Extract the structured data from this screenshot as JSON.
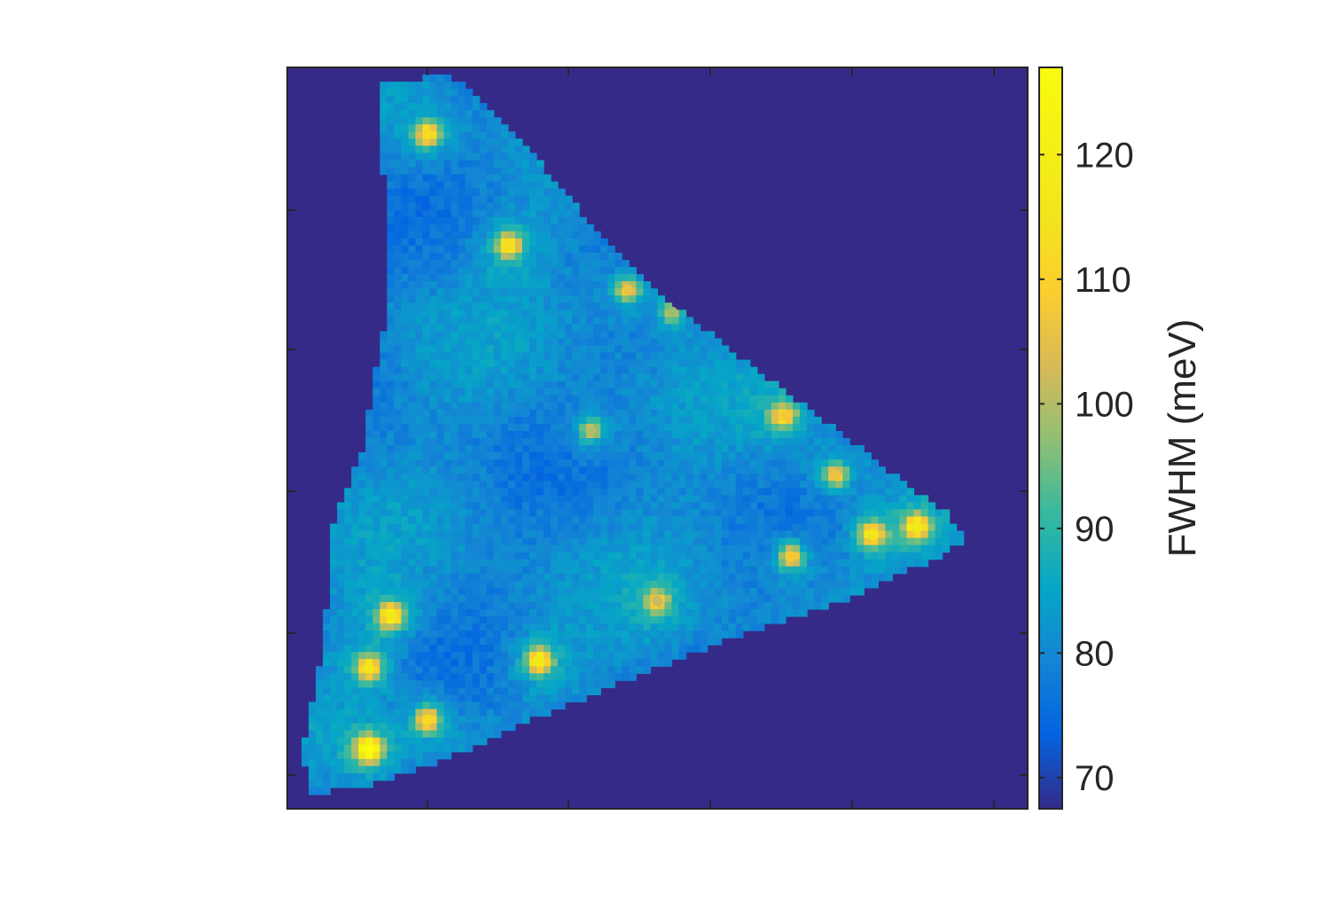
{
  "chart_data": {
    "type": "heatmap",
    "title": "",
    "xlabel": "",
    "ylabel": "",
    "x_tick_labels": [],
    "y_tick_labels": [],
    "colorbar": {
      "label": "FWHM (meV)",
      "range": [
        67.5,
        127
      ],
      "ticks": [
        70,
        80,
        90,
        100,
        110,
        120
      ],
      "tick_labels": [
        "70",
        "80",
        "90",
        "100",
        "110",
        "120"
      ],
      "colormap": "parula"
    },
    "background_value": 67.5,
    "grid": false,
    "description_of_values": {
      "region_shape": "triangular flake (vertices: top-left, bottom-left, right)",
      "typical_interior_value": 80,
      "hotspot_values_range": [
        100,
        127
      ],
      "min_value": 67.5,
      "max_value": 127
    },
    "hotspots": [
      {
        "label": "top-left cluster",
        "u": 0.19,
        "v": 0.09,
        "value": 112
      },
      {
        "label": "upper",
        "u": 0.3,
        "v": 0.24,
        "value": 113
      },
      {
        "label": "upper-mid",
        "u": 0.46,
        "v": 0.3,
        "value": 106
      },
      {
        "label": "upper-mid-right",
        "u": 0.52,
        "v": 0.33,
        "value": 98
      },
      {
        "label": "center",
        "u": 0.41,
        "v": 0.49,
        "value": 100
      },
      {
        "label": "mid-right",
        "u": 0.67,
        "v": 0.47,
        "value": 108
      },
      {
        "label": "right cluster",
        "u": 0.74,
        "v": 0.55,
        "value": 106
      },
      {
        "label": "right tip",
        "u": 0.85,
        "v": 0.62,
        "value": 117
      },
      {
        "label": "right tip small",
        "u": 0.79,
        "v": 0.63,
        "value": 115
      },
      {
        "label": "lower-right",
        "u": 0.68,
        "v": 0.66,
        "value": 108
      },
      {
        "label": "lower-center",
        "u": 0.5,
        "v": 0.72,
        "value": 102
      },
      {
        "label": "lower-mid",
        "u": 0.34,
        "v": 0.8,
        "value": 117
      },
      {
        "label": "left lower 1",
        "u": 0.14,
        "v": 0.74,
        "value": 117
      },
      {
        "label": "left lower 2",
        "u": 0.11,
        "v": 0.81,
        "value": 115
      },
      {
        "label": "bottom ring",
        "u": 0.19,
        "v": 0.88,
        "value": 112
      },
      {
        "label": "bottom-left",
        "u": 0.11,
        "v": 0.92,
        "value": 127
      }
    ]
  }
}
